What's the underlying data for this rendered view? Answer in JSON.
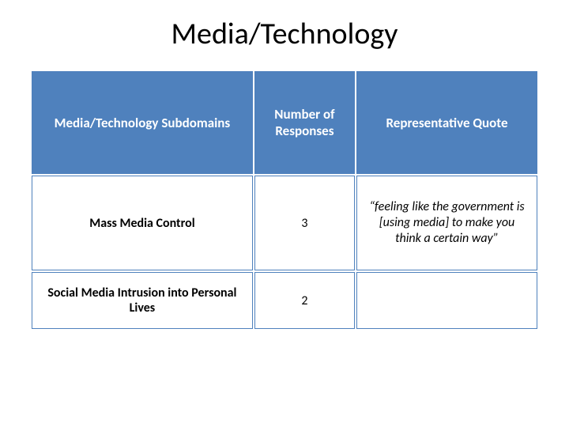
{
  "title": "Media/Technology",
  "table": {
    "header_bg": "#4f81bd",
    "header_fg": "#ffffff",
    "border_color": "#4f81bd",
    "columns": [
      "Media/Technology Subdomains",
      "Number of Responses",
      "Representative Quote"
    ],
    "rows": [
      {
        "subdomain": "Mass Media Control",
        "count": "3",
        "quote": "“feeling like the government is [using media] to make you think a certain way”"
      },
      {
        "subdomain": "Social Media Intrusion into Personal Lives",
        "count": "2",
        "quote": ""
      }
    ]
  }
}
